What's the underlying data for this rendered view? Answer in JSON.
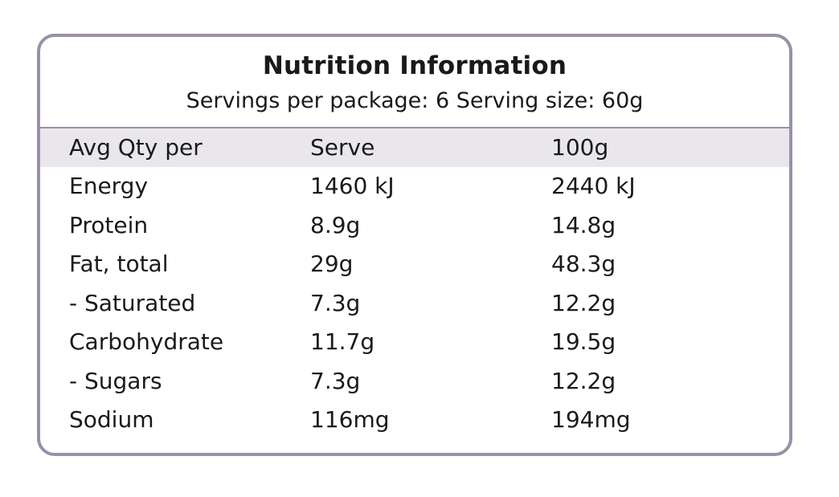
{
  "panel": {
    "title": "Nutrition Information",
    "subtitle": "Servings per package: 6 Serving size: 60g",
    "border_color": "#9b8fa8",
    "header_row_bg": "#e9e7ec"
  },
  "table": {
    "headers": [
      "Avg Qty per",
      "Serve",
      "100g"
    ],
    "rows": [
      [
        "Energy",
        "1460 kJ",
        "2440 kJ"
      ],
      [
        "Protein",
        "8.9g",
        "14.8g"
      ],
      [
        "Fat, total",
        "29g",
        "48.3g"
      ],
      [
        "- Saturated",
        "7.3g",
        "12.2g"
      ],
      [
        "Carbohydrate",
        "11.7g",
        "19.5g"
      ],
      [
        "- Sugars",
        "7.3g",
        "12.2g"
      ],
      [
        "Sodium",
        "116mg",
        "194mg"
      ]
    ]
  }
}
